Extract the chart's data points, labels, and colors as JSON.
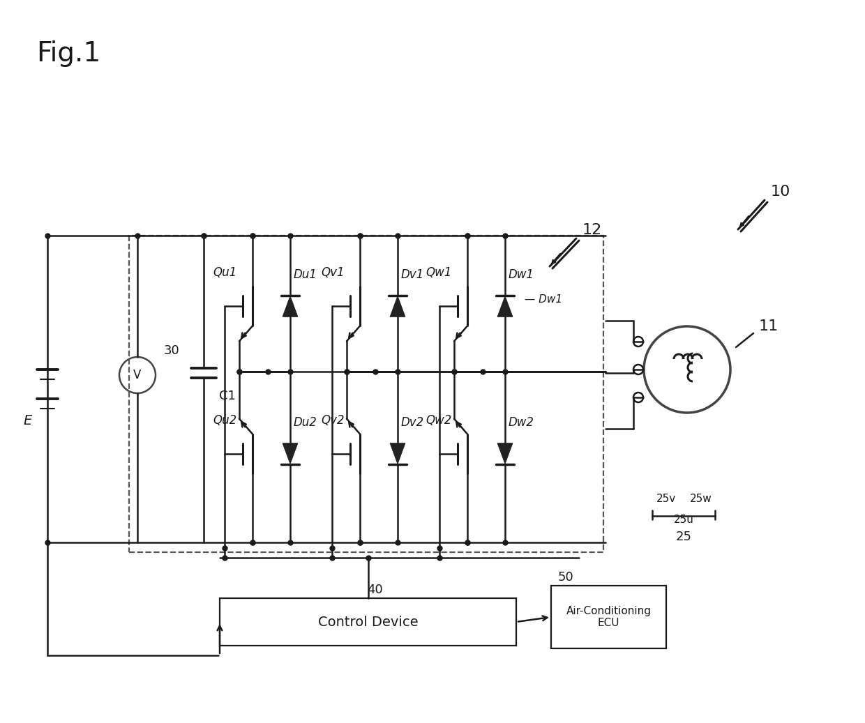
{
  "fig_label": "Fig.1",
  "label_10": "10",
  "label_11": "11",
  "label_12": "12",
  "label_30": "30",
  "label_E": "E",
  "label_C1": "C1",
  "label_40": "40",
  "label_50": "50",
  "label_25": "25",
  "label_25u": "25u",
  "label_25v": "25v",
  "label_25w": "25w",
  "control_device_text": "Control Device",
  "ecu_line1": "Air-Conditioning",
  "ecu_line2": "ECU",
  "voltmeter_label": "V",
  "transistors_upper": [
    "Qu1",
    "Qv1",
    "Qw1"
  ],
  "transistors_lower": [
    "Qu2",
    "Qv2",
    "Qw2"
  ],
  "diodes_upper": [
    "Du1",
    "Dv1",
    "Dw1"
  ],
  "diodes_lower": [
    "Du2",
    "Dv2",
    "Dw2"
  ],
  "bg_color": "#ffffff",
  "line_color": "#1a1a1a",
  "lw": 1.8,
  "dot_size": 5
}
